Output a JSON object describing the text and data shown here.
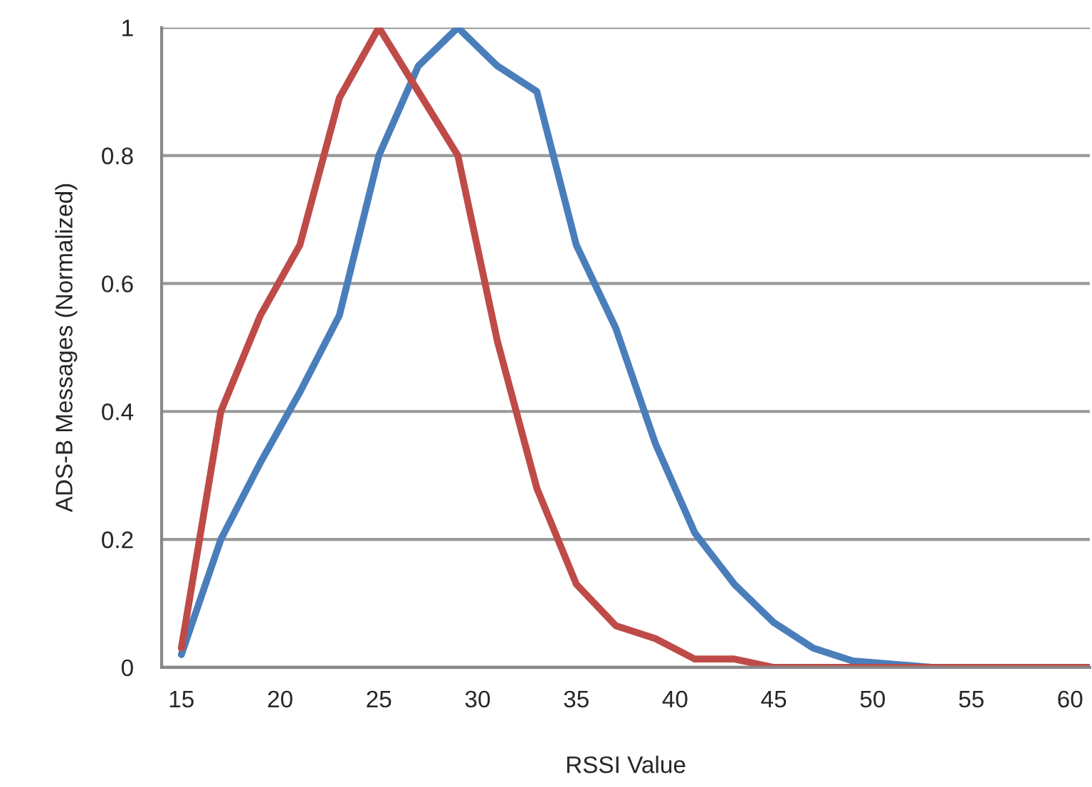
{
  "chart_data": {
    "type": "line",
    "xlabel": "RSSI Value",
    "ylabel": "ADS-B Messages (Normalized)",
    "x": [
      15,
      17,
      19,
      21,
      23,
      25,
      27,
      29,
      31,
      33,
      35,
      37,
      39,
      41,
      43,
      45,
      47,
      49,
      51,
      53,
      55,
      57,
      59,
      61
    ],
    "series": [
      {
        "color": "#4a7ebb",
        "values": [
          0.02,
          0.2,
          0.32,
          0.43,
          0.55,
          0.8,
          0.94,
          1.0,
          0.94,
          0.9,
          0.66,
          0.53,
          0.35,
          0.21,
          0.13,
          0.07,
          0.03,
          0.01,
          0.005,
          0,
          0,
          null,
          null,
          null
        ]
      },
      {
        "color": "#be4b48",
        "values": [
          0.03,
          0.4,
          0.55,
          0.66,
          0.89,
          1.0,
          0.9,
          0.8,
          0.51,
          0.28,
          0.13,
          0.065,
          0.045,
          0.013,
          0.013,
          0,
          0,
          0,
          0,
          0,
          0,
          0,
          0,
          0
        ]
      }
    ],
    "xlim": [
      14,
      61
    ],
    "xticks": [
      15,
      20,
      25,
      30,
      35,
      40,
      45,
      50,
      55,
      60
    ],
    "ylim": [
      0,
      1
    ],
    "yticks": [
      0,
      0.2,
      0.4,
      0.6,
      0.8,
      1
    ],
    "grid": "y",
    "marker": "none",
    "line_style": "solid"
  }
}
